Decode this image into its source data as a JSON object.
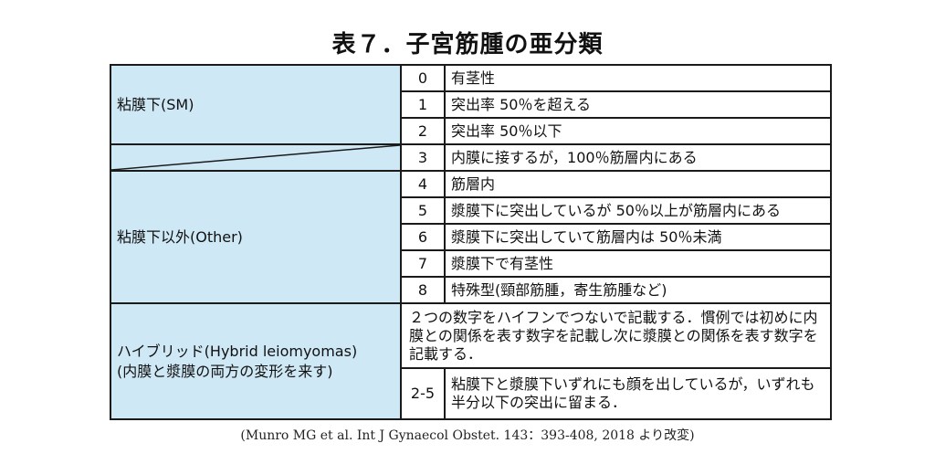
{
  "title": "表７．子宮筋腫の亜分類",
  "rows": [
    {
      "num": "0",
      "desc": "有茎性"
    },
    {
      "num": "1",
      "desc": "突出率 50％を超える"
    },
    {
      "num": "2",
      "desc": "突出率 50％以下"
    },
    {
      "num": "3",
      "desc": "内膜に接するが，100％筋層内にある"
    },
    {
      "num": "4",
      "desc": "筋層内"
    },
    {
      "num": "5",
      "desc": "漿膜下に突出しているが 50％以上が筋層内にある"
    },
    {
      "num": "6",
      "desc": "漿膜下に突出していて筋層内は 50％未満"
    },
    {
      "num": "7",
      "desc": "漿膜下で有茎性"
    },
    {
      "num": "8",
      "desc": "特殊型(頸部筋腫，寄生筋腫など)"
    }
  ],
  "categories": {
    "submucosal": "粘膜下(SM)",
    "other": "粘膜下以外(Other)",
    "hybrid_line1": "ハイブリッド(Hybrid leiomyomas)",
    "hybrid_line2": "(内膜と漿膜の両方の変形を来す)"
  },
  "hybrid": {
    "note": "２つの数字をハイフンでつないで記載する．慣例では初めに内膜との関係を表す数字を記載し次に漿膜との関係を表す数字を記載する．",
    "example_num": "2-5",
    "example_desc": "粘膜下と漿膜下いずれにも顔を出しているが，いずれも半分以下の突出に留まる．"
  },
  "source": "(Munro MG et al.  Int J Gynaecol Obstet.  143：393-408,  2018 より改変)",
  "colors": {
    "category_bg": "#cfe8f6",
    "border": "#1a1a1a"
  }
}
